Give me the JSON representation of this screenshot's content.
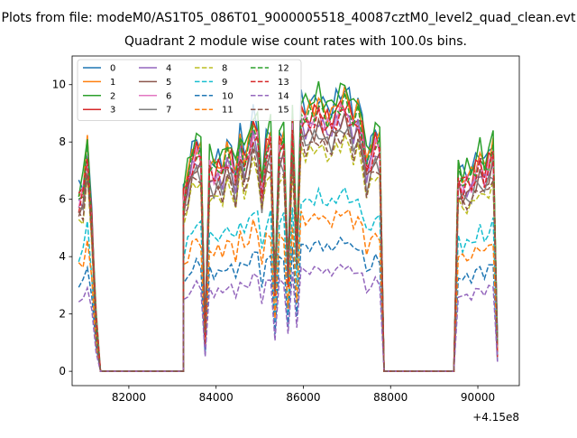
{
  "chart_data": {
    "type": "line",
    "suptitle": "Plots from file: modeM0/AS1T05_086T01_9000005518_40087cztM0_level2_quad_clean.evt",
    "title": "Quadrant 2 module wise count rates with 100.0s bins.",
    "xlabel": "",
    "ylabel": "",
    "x_offset_label": "+4.15e8",
    "xlim": [
      80700,
      90950
    ],
    "ylim": [
      -0.5,
      11.0
    ],
    "x_ticks": [
      82000,
      84000,
      86000,
      88000,
      90000
    ],
    "x_tick_labels": [
      "82000",
      "84000",
      "86000",
      "88000",
      "90000"
    ],
    "y_ticks": [
      0,
      2,
      4,
      6,
      8,
      10
    ],
    "y_tick_labels": [
      "0",
      "2",
      "4",
      "6",
      "8",
      "10"
    ],
    "grid": false,
    "legend_position": "upper-left",
    "legend_columns": 4,
    "x_segments": [
      [
        80850,
        80950,
        81050,
        81150,
        81250,
        81350
      ],
      [
        83250,
        83350,
        83450,
        83550,
        83650,
        83750,
        83850,
        83950,
        84050,
        84150,
        84250,
        84350,
        84450,
        84550,
        84650,
        84750,
        84850,
        84950,
        85050,
        85150,
        85250,
        85350,
        85450,
        85550,
        85650,
        85750,
        85850,
        85950,
        86050,
        86150,
        86250,
        86350,
        86450,
        86550,
        86650,
        86750,
        86850,
        86950,
        87050,
        87150,
        87250,
        87350,
        87450,
        87550,
        87650,
        87750,
        87850
      ],
      [
        89450,
        89550,
        89650,
        89750,
        89850,
        89950,
        90050,
        90150,
        90250,
        90350,
        90450
      ]
    ],
    "gaps": [
      [
        81350,
        83250
      ],
      [
        87850,
        89450
      ]
    ],
    "series": [
      {
        "name": "0",
        "color": "#1f77b4",
        "dash": "solid",
        "base": 8.8
      },
      {
        "name": "1",
        "color": "#ff7f0e",
        "dash": "solid",
        "base": 8.6
      },
      {
        "name": "2",
        "color": "#2ca02c",
        "dash": "solid",
        "base": 8.9
      },
      {
        "name": "3",
        "color": "#d62728",
        "dash": "solid",
        "base": 8.4
      },
      {
        "name": "4",
        "color": "#9467bd",
        "dash": "solid",
        "base": 8.0
      },
      {
        "name": "5",
        "color": "#8c564b",
        "dash": "solid",
        "base": 7.8
      },
      {
        "name": "6",
        "color": "#e377c2",
        "dash": "solid",
        "base": 8.2
      },
      {
        "name": "7",
        "color": "#7f7f7f",
        "dash": "solid",
        "base": 7.6
      },
      {
        "name": "8",
        "color": "#bcbd22",
        "dash": "dashed",
        "base": 7.2
      },
      {
        "name": "9",
        "color": "#17becf",
        "dash": "dashed",
        "base": 5.6
      },
      {
        "name": "10",
        "color": "#1f77b4",
        "dash": "dashed",
        "base": 4.1
      },
      {
        "name": "11",
        "color": "#ff7f0e",
        "dash": "dashed",
        "base": 5.0
      },
      {
        "name": "12",
        "color": "#2ca02c",
        "dash": "dashed",
        "base": 8.4
      },
      {
        "name": "13",
        "color": "#d62728",
        "dash": "dashed",
        "base": 8.1
      },
      {
        "name": "14",
        "color": "#9467bd",
        "dash": "dashed",
        "base": 3.3
      },
      {
        "name": "15",
        "color": "#8c564b",
        "dash": "dashed",
        "base": 7.4
      }
    ],
    "shape_segments": [
      [
        0.72,
        0.75,
        0.92,
        0.62,
        0.2,
        0.0
      ],
      [
        0.72,
        0.8,
        0.88,
        0.92,
        0.9,
        0.15,
        0.86,
        0.82,
        0.85,
        0.83,
        0.9,
        0.88,
        0.8,
        0.95,
        0.87,
        0.92,
        1.02,
        0.98,
        0.75,
        0.93,
        0.97,
        0.35,
        0.94,
        0.95,
        0.4,
        1.02,
        0.5,
        1.08,
        1.05,
        1.06,
        1.07,
        1.1,
        1.06,
        1.05,
        1.04,
        1.08,
        1.1,
        1.12,
        1.09,
        1.03,
        1.07,
        1.0,
        0.85,
        0.9,
        0.96,
        0.94,
        0.0
      ],
      [
        0.0,
        0.82,
        0.78,
        0.8,
        0.79,
        0.84,
        0.88,
        0.82,
        0.87,
        0.92,
        0.1
      ]
    ]
  }
}
